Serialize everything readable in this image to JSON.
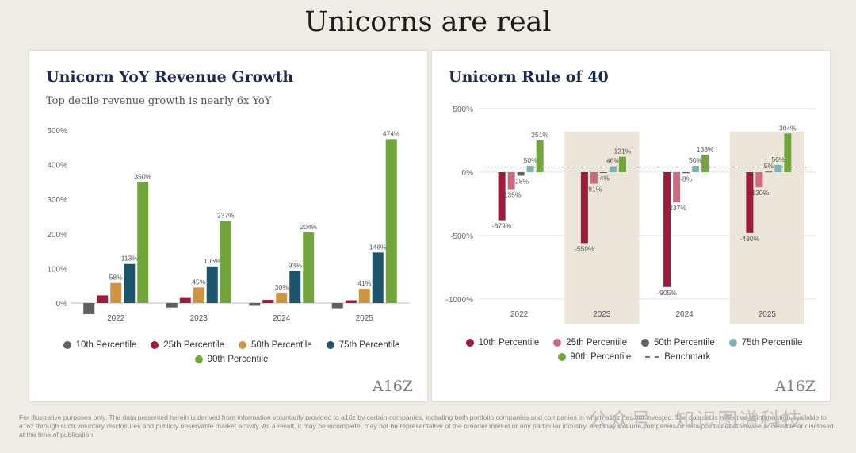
{
  "page": {
    "title": "Unicorns are real",
    "disclaimer": "For illustrative purposes only. The data presented herein is derived from information voluntarily provided to a16z by certain companies, including both portfolio companies and companies in which a16z has not invested. The dataset is reflective of information available to a16z through such voluntary disclosures and publicly observable market activity. As a result, it may be incomplete, may not be representative of the broader market or any particular industry, and may exclude companies or data points not otherwise accessible or disclosed at the time of publication.",
    "watermark": "公众号 · 知识图谱科技",
    "logo": "A16Z"
  },
  "chart_data": [
    {
      "type": "bar",
      "title": "Unicorn YoY Revenue Growth",
      "subtitle": "Top decile revenue growth is nearly 6x YoY",
      "categories": [
        "2022",
        "2023",
        "2024",
        "2025"
      ],
      "ylim": [
        -30,
        500
      ],
      "yticks": [
        "0%",
        "100%",
        "200%",
        "300%",
        "400%",
        "500%"
      ],
      "ytick_values": [
        0,
        100,
        200,
        300,
        400,
        500
      ],
      "series": [
        {
          "name": "10th Percentile",
          "color": "#5f5f5f",
          "values": [
            -32,
            -13,
            -8,
            -15
          ],
          "labels": [
            "",
            "",
            "",
            ""
          ]
        },
        {
          "name": "25th Percentile",
          "color": "#9d1b3c",
          "values": [
            22,
            17,
            9,
            8
          ],
          "labels": [
            "",
            "",
            "",
            ""
          ]
        },
        {
          "name": "50th Percentile",
          "color": "#cf9543",
          "values": [
            58,
            45,
            30,
            41
          ],
          "labels": [
            "58%",
            "45%",
            "30%",
            "41%"
          ]
        },
        {
          "name": "75th Percentile",
          "color": "#1b546b",
          "values": [
            113,
            106,
            93,
            146
          ],
          "labels": [
            "113%",
            "106%",
            "93%",
            "146%"
          ]
        },
        {
          "name": "90th Percentile",
          "color": "#72a53c",
          "values": [
            350,
            237,
            204,
            474
          ],
          "labels": [
            "350%",
            "237%",
            "204%",
            "474%"
          ]
        }
      ],
      "legend": "bottom"
    },
    {
      "type": "bar",
      "title": "Unicorn Rule of 40",
      "categories": [
        "2022",
        "2023",
        "2024",
        "2025"
      ],
      "ylim": [
        -1000,
        500
      ],
      "yticks": [
        "500%",
        "0%",
        "-500%",
        "-1000%"
      ],
      "ytick_values": [
        500,
        0,
        -500,
        -1000
      ],
      "highlighted_categories": [
        "2023",
        "2025"
      ],
      "benchmark": {
        "name": "Benchmark",
        "value": 40
      },
      "series": [
        {
          "name": "10th Percentile",
          "color": "#9d1b3c",
          "values": [
            -379,
            -559,
            -905,
            -480
          ],
          "labels": [
            "-379%",
            "-559%",
            "-905%",
            "-480%"
          ]
        },
        {
          "name": "25th Percentile",
          "color": "#cc6a82",
          "values": [
            -135,
            -91,
            -237,
            -120
          ],
          "labels": [
            "-135%",
            "-91%",
            "-237%",
            "-120%"
          ]
        },
        {
          "name": "50th Percentile",
          "color": "#5f5f5f",
          "values": [
            -28,
            -4,
            -8,
            5
          ],
          "labels": [
            "-28%",
            "-4%",
            "-8%",
            "5%"
          ]
        },
        {
          "name": "75th Percentile",
          "color": "#7fb3b3",
          "values": [
            50,
            46,
            50,
            56
          ],
          "labels": [
            "50%",
            "46%",
            "50%",
            "56%"
          ]
        },
        {
          "name": "90th Percentile",
          "color": "#72a53c",
          "values": [
            251,
            121,
            138,
            304
          ],
          "labels": [
            "251%",
            "121%",
            "138%",
            "304%"
          ]
        }
      ],
      "legend": "bottom"
    }
  ]
}
